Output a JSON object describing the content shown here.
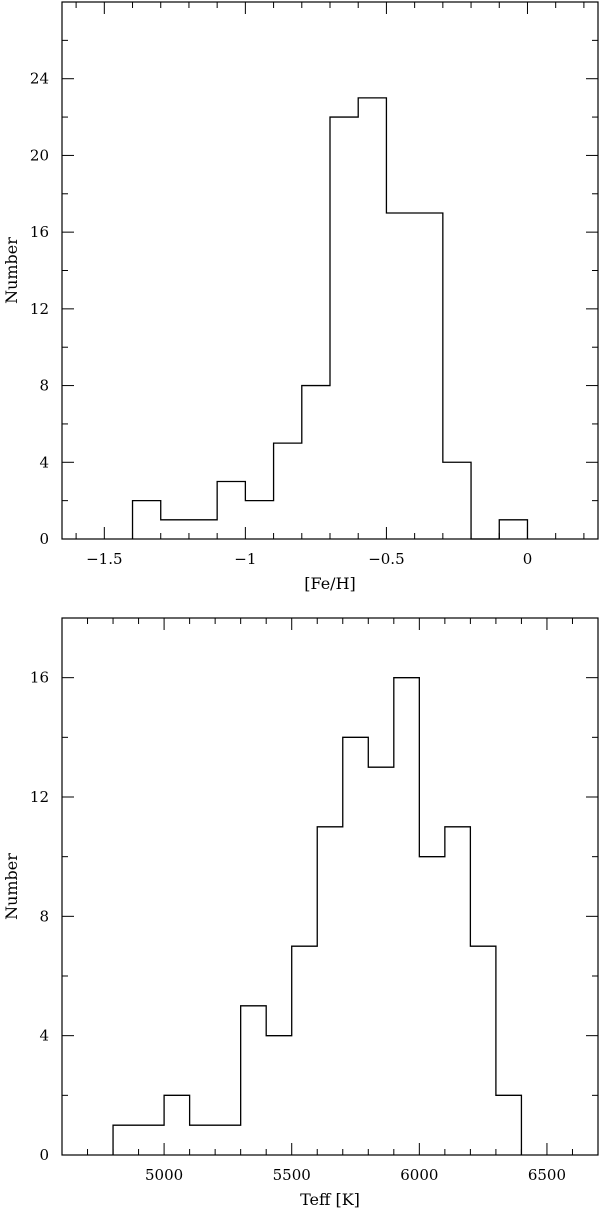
{
  "chart_data": [
    {
      "type": "histogram",
      "xlabel": "[Fe/H]",
      "ylabel": "Number",
      "xlim": [
        -1.65,
        0.25
      ],
      "ylim": [
        0,
        28
      ],
      "xticks_major": [
        -1.5,
        -1,
        -0.5,
        0
      ],
      "xtick_labels": [
        "−1.5",
        "−1",
        "−0.5",
        "0"
      ],
      "xminor_step": 0.1,
      "yticks_major": [
        0,
        4,
        8,
        12,
        16,
        20,
        24
      ],
      "ytick_labels": [
        "0",
        "4",
        "8",
        "12",
        "16",
        "20",
        "24"
      ],
      "yminor_step": 2,
      "bin_edges": [
        -1.4,
        -1.3,
        -1.2,
        -1.1,
        -1.0,
        -0.9,
        -0.8,
        -0.7,
        -0.6,
        -0.5,
        -0.4,
        -0.3,
        -0.2,
        -0.1,
        0.0
      ],
      "counts": [
        2,
        1,
        1,
        3,
        2,
        5,
        8,
        22,
        23,
        17,
        17,
        4,
        0,
        1
      ]
    },
    {
      "type": "histogram",
      "xlabel": "Teff [K]",
      "ylabel": "Number",
      "xlim": [
        4600,
        6700
      ],
      "ylim": [
        0,
        18
      ],
      "xticks_major": [
        5000,
        5500,
        6000,
        6500
      ],
      "xtick_labels": [
        "5000",
        "5500",
        "6000",
        "6500"
      ],
      "xminor_step": 100,
      "yticks_major": [
        0,
        4,
        8,
        12,
        16
      ],
      "ytick_labels": [
        "0",
        "4",
        "8",
        "12",
        "16"
      ],
      "yminor_step": 2,
      "bin_edges": [
        4800,
        4900,
        5000,
        5100,
        5200,
        5300,
        5400,
        5500,
        5600,
        5700,
        5800,
        5900,
        6000,
        6100,
        6200,
        6300,
        6400
      ],
      "counts": [
        1,
        1,
        2,
        1,
        1,
        5,
        4,
        7,
        11,
        14,
        13,
        16,
        10,
        11,
        7,
        2
      ]
    }
  ]
}
